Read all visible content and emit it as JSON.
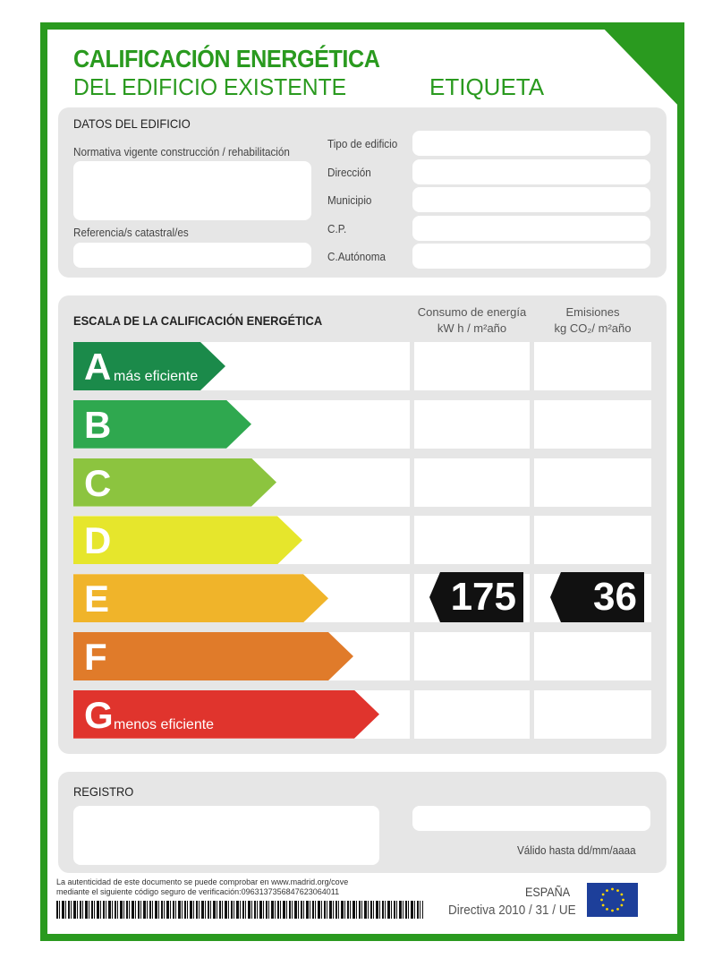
{
  "header": {
    "title_line1": "CALIFICACIÓN ENERGÉTICA",
    "title_line2": "DEL EDIFICIO EXISTENTE",
    "label": "ETIQUETA"
  },
  "datos": {
    "heading": "DATOS DEL EDIFICIO",
    "normativa": "Normativa vigente construcción / rehabilitación",
    "referencia": "Referencia/s catastral/es",
    "fields": [
      "Tipo de edificio",
      "Dirección",
      "Municipio",
      "C.P.",
      "C.Autónoma"
    ]
  },
  "escala": {
    "heading": "ESCALA DE LA CALIFICACIÓN ENERGÉTICA",
    "col1_line1": "Consumo de energía",
    "col1_line2": "kW h / m²año",
    "col2_line1": "Emisiones",
    "col2_line2": "kg CO₂/ m²año",
    "ratings": [
      {
        "letter": "A",
        "sub": "más eficiente",
        "color": "#1b8a4a"
      },
      {
        "letter": "B",
        "sub": "",
        "color": "#2fa84f"
      },
      {
        "letter": "C",
        "sub": "",
        "color": "#8cc43f"
      },
      {
        "letter": "D",
        "sub": "",
        "color": "#e6e62c"
      },
      {
        "letter": "E",
        "sub": "",
        "color": "#f0b42a"
      },
      {
        "letter": "F",
        "sub": "",
        "color": "#e07b2a"
      },
      {
        "letter": "G",
        "sub": "menos eficiente",
        "color": "#e0342d"
      }
    ],
    "selected_rating": "E",
    "consumo": "175",
    "emisiones": "36"
  },
  "registro": {
    "heading": "REGISTRO",
    "valido": "Válido hasta dd/mm/aaaa"
  },
  "footer": {
    "line1": "La autenticidad de este documento se puede comprobar en www.madrid.org/cove",
    "line2": "mediante el siguiente código seguro de verificación:0963137356847623064011",
    "country": "ESPAÑA",
    "directive": "Directiva 2010 / 31 / UE"
  },
  "colors": {
    "brand_green": "#2a9a1f",
    "panel_gray": "#e6e6e6"
  }
}
